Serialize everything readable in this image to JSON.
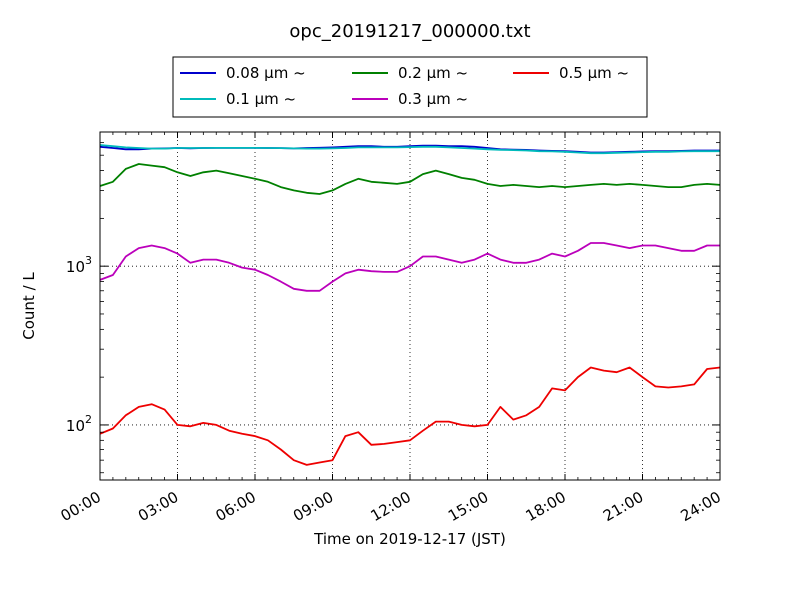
{
  "chart_data": {
    "type": "line",
    "title": "opc_20191217_000000.txt",
    "xlabel": "Time on 2019-12-17 (JST)",
    "ylabel": "Count / L",
    "x_unit": "hours",
    "xlim": [
      0,
      24
    ],
    "ylim": [
      45,
      7000
    ],
    "yscale": "log",
    "grid": true,
    "legend_position": "top-center",
    "x_tick_labels": [
      "00:00",
      "03:00",
      "06:00",
      "09:00",
      "12:00",
      "15:00",
      "18:00",
      "21:00",
      "24:00"
    ],
    "y_tick_labels": [
      {
        "value": 100,
        "base": "10",
        "exp": "2"
      },
      {
        "value": 1000,
        "base": "10",
        "exp": "3"
      }
    ],
    "x": [
      0,
      0.5,
      1,
      1.5,
      2,
      2.5,
      3,
      3.5,
      4,
      4.5,
      5,
      5.5,
      6,
      6.5,
      7,
      7.5,
      8,
      8.5,
      9,
      9.5,
      10,
      10.5,
      11,
      11.5,
      12,
      12.5,
      13,
      13.5,
      14,
      14.5,
      15,
      15.5,
      16,
      16.5,
      17,
      17.5,
      18,
      18.5,
      19,
      19.5,
      20,
      20.5,
      21,
      21.5,
      22,
      22.5,
      23,
      23.5,
      24
    ],
    "series": [
      {
        "name": "0.08 μm ~",
        "color": "#0000cc",
        "values": [
          5650,
          5550,
          5450,
          5450,
          5500,
          5520,
          5550,
          5520,
          5550,
          5560,
          5560,
          5560,
          5560,
          5550,
          5540,
          5520,
          5550,
          5570,
          5600,
          5650,
          5700,
          5700,
          5650,
          5650,
          5700,
          5750,
          5750,
          5700,
          5700,
          5650,
          5550,
          5450,
          5420,
          5400,
          5350,
          5320,
          5300,
          5250,
          5200,
          5200,
          5230,
          5250,
          5280,
          5300,
          5300,
          5320,
          5350,
          5350,
          5350
        ]
      },
      {
        "name": "0.1 μm ~",
        "color": "#00bbbb",
        "values": [
          5800,
          5700,
          5600,
          5550,
          5500,
          5500,
          5550,
          5550,
          5550,
          5560,
          5560,
          5560,
          5560,
          5550,
          5540,
          5520,
          5500,
          5500,
          5520,
          5550,
          5600,
          5600,
          5600,
          5600,
          5620,
          5650,
          5650,
          5600,
          5550,
          5500,
          5450,
          5400,
          5380,
          5350,
          5300,
          5280,
          5250,
          5200,
          5150,
          5150,
          5180,
          5200,
          5230,
          5250,
          5250,
          5280,
          5300,
          5300,
          5300
        ]
      },
      {
        "name": "0.2 μm ~",
        "color": "#008000",
        "values": [
          3200,
          3400,
          4100,
          4400,
          4300,
          4200,
          3900,
          3700,
          3900,
          4000,
          3850,
          3700,
          3550,
          3400,
          3150,
          3000,
          2900,
          2850,
          3000,
          3300,
          3550,
          3400,
          3350,
          3300,
          3400,
          3800,
          4000,
          3800,
          3600,
          3500,
          3300,
          3200,
          3250,
          3200,
          3150,
          3200,
          3150,
          3200,
          3250,
          3300,
          3250,
          3300,
          3250,
          3200,
          3150,
          3150,
          3250,
          3300,
          3250
        ]
      },
      {
        "name": "0.3 μm ~",
        "color": "#bb00bb",
        "values": [
          820,
          880,
          1150,
          1300,
          1350,
          1300,
          1200,
          1050,
          1100,
          1100,
          1050,
          980,
          950,
          880,
          800,
          720,
          700,
          700,
          800,
          900,
          950,
          930,
          920,
          920,
          1000,
          1150,
          1150,
          1100,
          1050,
          1100,
          1200,
          1100,
          1050,
          1050,
          1100,
          1200,
          1150,
          1250,
          1400,
          1400,
          1350,
          1300,
          1350,
          1350,
          1300,
          1250,
          1250,
          1350,
          1350
        ]
      },
      {
        "name": "0.5 μm ~",
        "color": "#ee0000",
        "values": [
          88,
          95,
          115,
          130,
          135,
          125,
          100,
          98,
          103,
          100,
          92,
          88,
          85,
          80,
          70,
          60,
          56,
          58,
          60,
          85,
          90,
          75,
          76,
          78,
          80,
          92,
          105,
          105,
          100,
          98,
          100,
          130,
          108,
          115,
          130,
          170,
          165,
          200,
          230,
          220,
          215,
          230,
          200,
          175,
          172,
          175,
          180,
          225,
          230
        ]
      }
    ]
  }
}
